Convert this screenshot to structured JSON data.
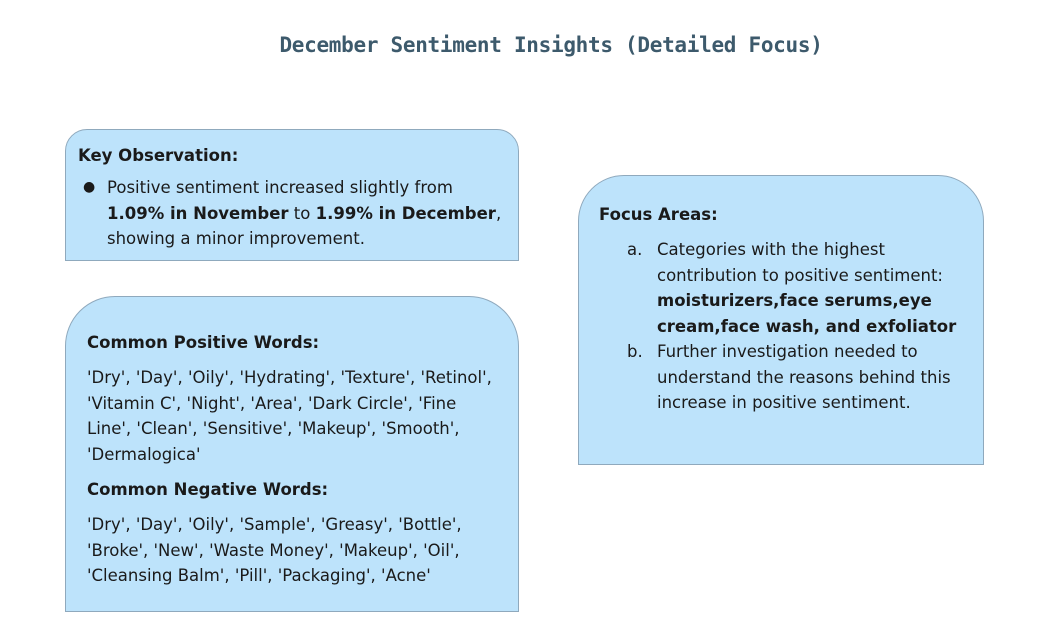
{
  "title": "December Sentiment Insights (Detailed Focus)",
  "key_observation": {
    "heading": "Key Observation:",
    "bullet": {
      "part1": "Positive sentiment increased slightly from ",
      "bold1": "1.09% in November",
      "part2": " to ",
      "bold2": "1.99% in December",
      "part3": ", showing a minor improvement."
    }
  },
  "words": {
    "positive_heading": "Common Positive Words:",
    "positive_text": "'Dry', 'Day', 'Oily', 'Hydrating', 'Texture', 'Retinol', 'Vitamin C', 'Night', 'Area', 'Dark Circle', 'Fine Line', 'Clean', 'Sensitive', 'Makeup', 'Smooth', 'Dermalogica'",
    "negative_heading": "Common Negative Words:",
    "negative_text": "'Dry', 'Day', 'Oily', 'Sample', 'Greasy', 'Bottle', 'Broke', 'New', 'Waste Money', 'Makeup', 'Oil', 'Cleansing Balm', 'Pill', 'Packaging', 'Acne'"
  },
  "focus": {
    "heading": "Focus Areas:",
    "items": [
      {
        "marker": "a.",
        "text": "Categories with the highest contribution to positive sentiment: ",
        "bold": "moisturizers,face serums,eye cream,face wash, and exfoliator"
      },
      {
        "marker": "b.",
        "text": "Further investigation needed to understand the reasons behind this increase in positive sentiment.",
        "bold": ""
      }
    ]
  },
  "colors": {
    "card_fill": "#bde3fb",
    "card_border": "#8fa9bd",
    "title": "#3d5a6c"
  }
}
